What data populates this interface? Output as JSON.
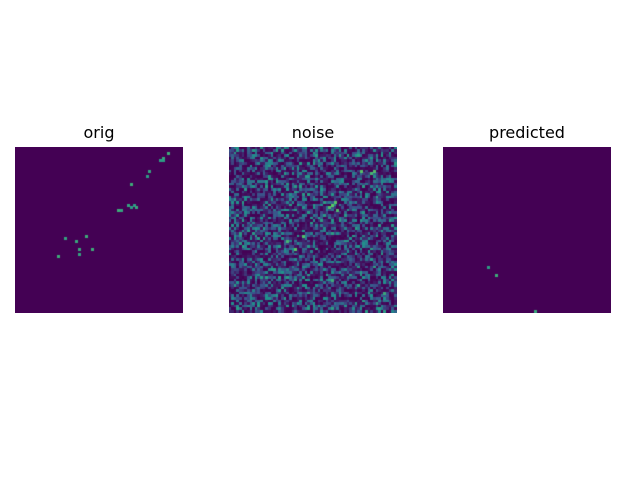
{
  "figure": {
    "colormap": "viridis",
    "background_color": "#440154",
    "panels": [
      {
        "id": "orig",
        "title": "orig",
        "grid": 64,
        "noise": false,
        "points": [
          [
            2,
            58,
            0.62
          ],
          [
            4,
            56,
            0.6
          ],
          [
            5,
            55,
            0.55
          ],
          [
            5,
            56,
            0.55
          ],
          [
            9,
            51,
            0.58
          ],
          [
            11,
            50,
            0.55
          ],
          [
            14,
            44,
            0.62
          ],
          [
            22,
            43,
            0.58
          ],
          [
            22,
            45,
            0.55
          ],
          [
            23,
            44,
            0.55
          ],
          [
            23,
            46,
            0.6
          ],
          [
            24,
            39,
            0.62
          ],
          [
            24,
            40,
            0.58
          ],
          [
            34,
            27,
            0.62
          ],
          [
            35,
            19,
            0.58
          ],
          [
            36,
            23,
            0.6
          ],
          [
            39,
            29,
            0.62
          ],
          [
            39,
            24,
            0.6
          ],
          [
            41,
            24,
            0.58
          ],
          [
            42,
            16,
            0.62
          ]
        ]
      },
      {
        "id": "noise",
        "title": "noise",
        "grid": 64,
        "noise": true,
        "noise_seed": 1234,
        "points": [
          [
            9,
            50,
            0.72
          ],
          [
            9,
            55,
            0.7
          ],
          [
            10,
            54,
            0.66
          ],
          [
            21,
            40,
            0.72
          ],
          [
            22,
            39,
            0.74
          ],
          [
            23,
            38,
            0.7
          ],
          [
            24,
            41,
            0.68
          ],
          [
            34,
            28,
            0.7
          ],
          [
            36,
            22,
            0.66
          ],
          [
            39,
            25,
            0.72
          ],
          [
            51,
            39,
            0.62
          ],
          [
            56,
            59,
            0.6
          ]
        ]
      },
      {
        "id": "predicted",
        "title": "predicted",
        "grid": 64,
        "noise": false,
        "points": [
          [
            46,
            17,
            0.55
          ],
          [
            49,
            20,
            0.62
          ],
          [
            63,
            35,
            0.6
          ]
        ]
      }
    ]
  }
}
